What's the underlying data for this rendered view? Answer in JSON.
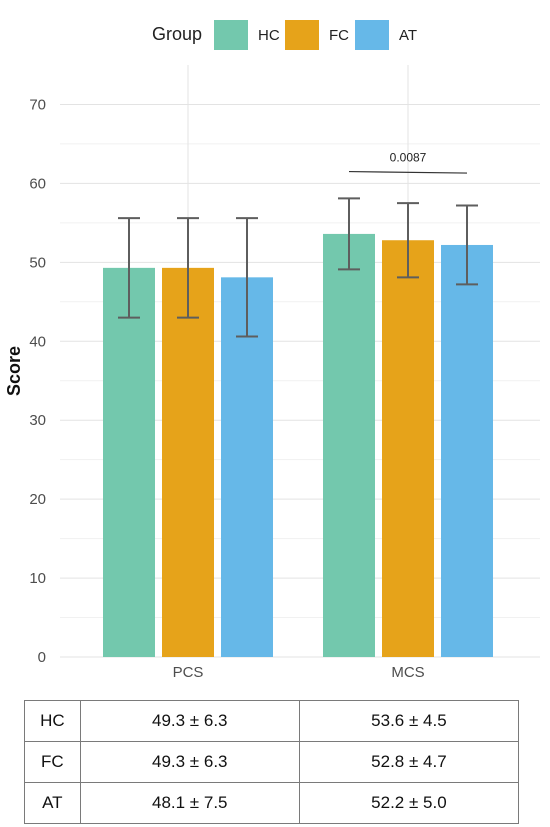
{
  "chart_data": {
    "type": "bar",
    "categories": [
      "PCS",
      "MCS"
    ],
    "series": [
      {
        "name": "HC",
        "values": [
          49.3,
          53.6
        ],
        "errors": [
          6.3,
          4.5
        ],
        "color": "#73C8AD"
      },
      {
        "name": "FC",
        "values": [
          49.3,
          52.8
        ],
        "errors": [
          6.3,
          4.7
        ],
        "color": "#E6A31A"
      },
      {
        "name": "AT",
        "values": [
          48.1,
          52.2
        ],
        "errors": [
          7.5,
          5.0
        ],
        "color": "#66B8E8"
      }
    ],
    "xlabel": "",
    "ylabel": "Score",
    "ylim": [
      0,
      75
    ],
    "yticks": [
      0,
      10,
      20,
      30,
      40,
      50,
      60,
      70
    ],
    "grid": true,
    "legend": {
      "title": "Group",
      "position": "top"
    },
    "annotations": [
      {
        "text": "0.0087",
        "category": "MCS",
        "from_series": "HC",
        "to_series": "AT",
        "y": 61.5
      }
    ]
  },
  "table": {
    "rows": [
      {
        "group": "HC",
        "pcs": "49.3 ± 6.3",
        "mcs": "53.6 ± 4.5"
      },
      {
        "group": "FC",
        "pcs": "49.3 ± 6.3",
        "mcs": "52.8 ± 4.7"
      },
      {
        "group": "AT",
        "pcs": "48.1 ± 7.5",
        "mcs": "52.2 ± 5.0"
      }
    ]
  }
}
